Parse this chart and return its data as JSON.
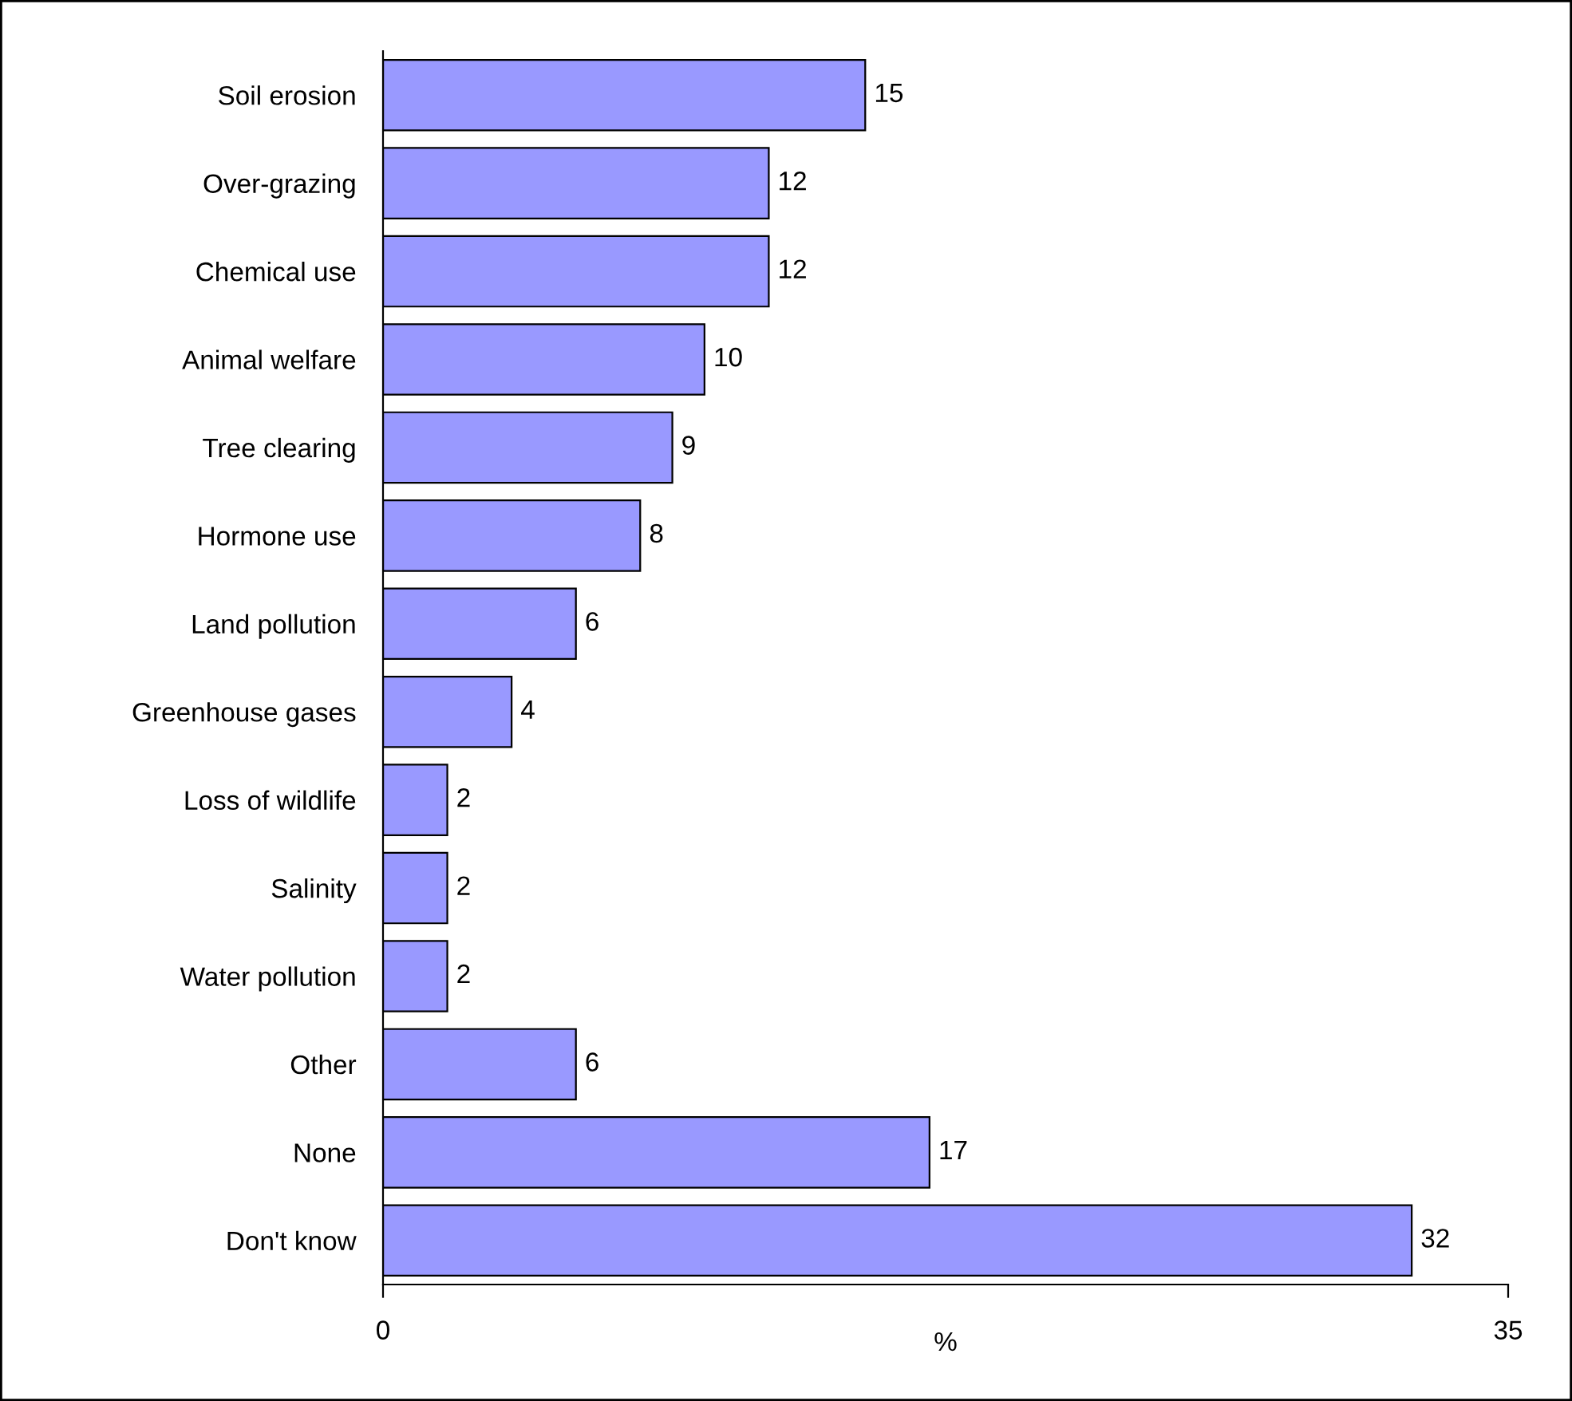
{
  "chart_data": {
    "type": "bar",
    "orientation": "horizontal",
    "xlabel": "%",
    "categories": [
      "Soil erosion",
      "Over-grazing",
      "Chemical use",
      "Animal welfare",
      "Tree clearing",
      "Hormone use",
      "Land pollution",
      "Greenhouse gases",
      "Loss of wildlife",
      "Salinity",
      "Water pollution",
      "Other",
      "None",
      "Don't know"
    ],
    "values": [
      15,
      12,
      12,
      10,
      9,
      8,
      6,
      4,
      2,
      2,
      2,
      6,
      17,
      32
    ],
    "color": "#9999ff",
    "xlim": [
      0,
      35
    ],
    "xticks": [
      0,
      35
    ],
    "data_labels": true,
    "grid": false
  }
}
